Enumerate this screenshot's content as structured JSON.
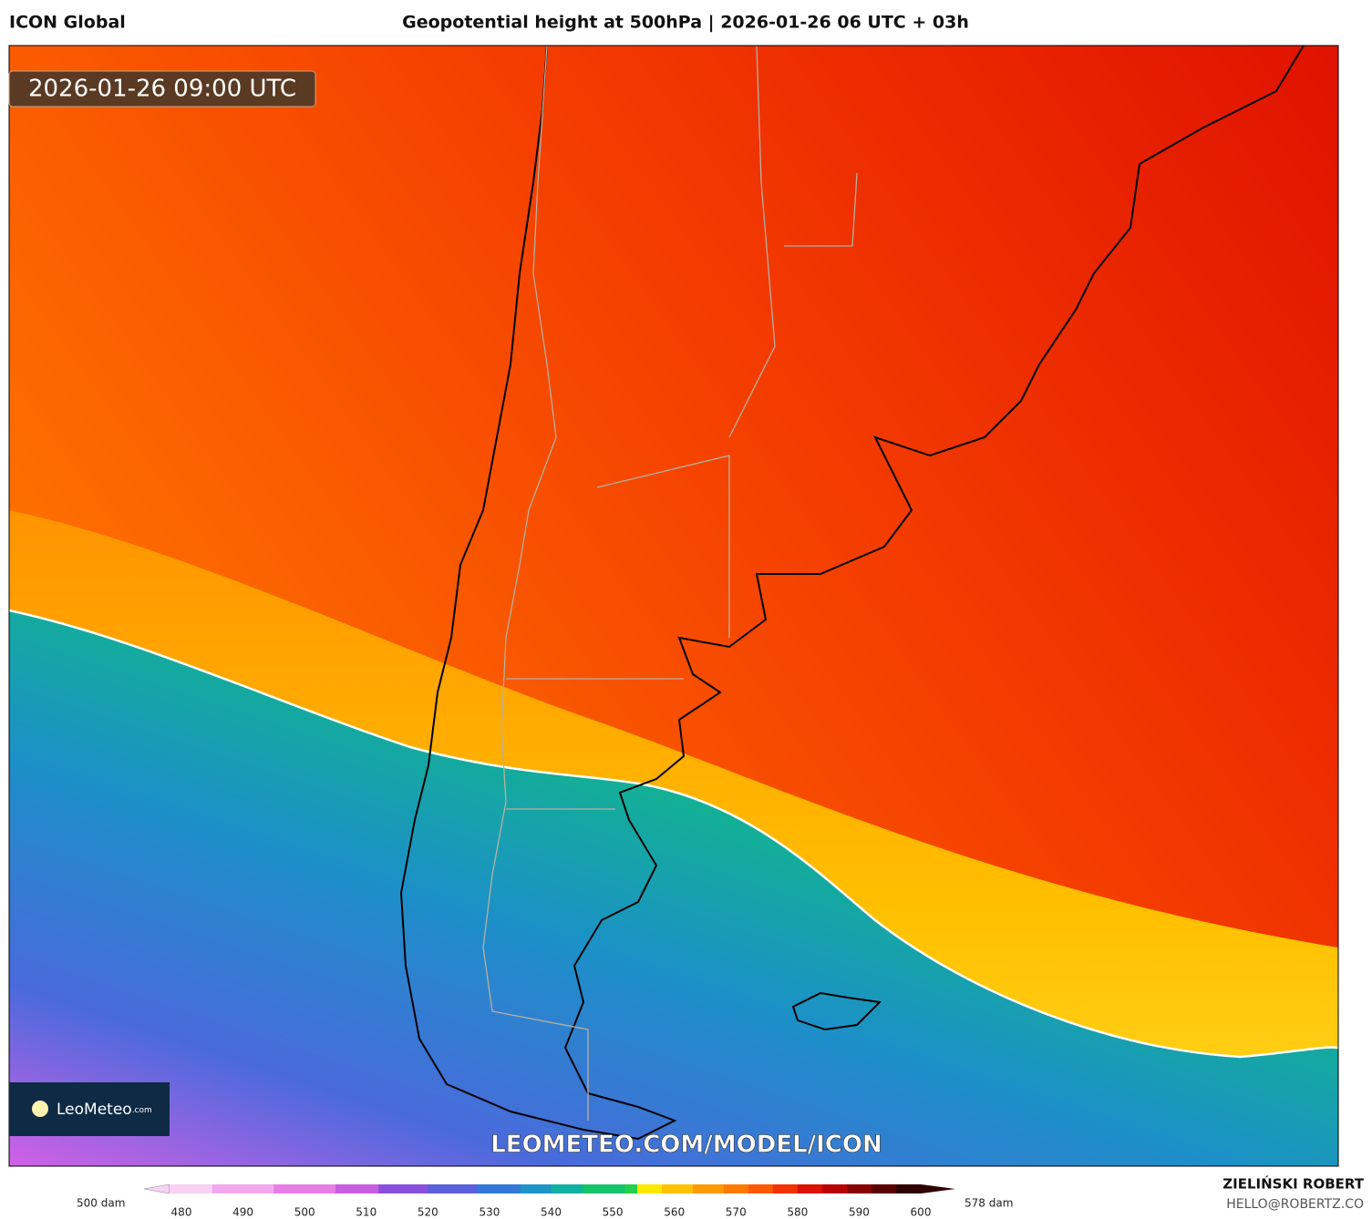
{
  "header": {
    "model": "ICON Global",
    "title": "Geopotential height at 500hPa | 2026-01-26 06 UTC + 03h"
  },
  "map": {
    "valid_time": "2026-01-26 09:00 UTC",
    "watermark": "LEOMETEO.COM/MODEL/ICON",
    "logo": {
      "name": "LeoMeteo",
      "suffix": ".com"
    }
  },
  "colorbar": {
    "min_label": "500 dam",
    "max_label": "578 dam",
    "ticks": [
      480,
      490,
      500,
      510,
      520,
      530,
      540,
      550,
      560,
      570,
      580,
      590,
      600
    ],
    "stops": [
      {
        "value": 478,
        "color": "#fbd0f5"
      },
      {
        "value": 485,
        "color": "#f3a8ee"
      },
      {
        "value": 495,
        "color": "#e77de6"
      },
      {
        "value": 505,
        "color": "#c85ee0"
      },
      {
        "value": 512,
        "color": "#8a4fdc"
      },
      {
        "value": 520,
        "color": "#5b5fdc"
      },
      {
        "value": 528,
        "color": "#3278d8"
      },
      {
        "value": 535,
        "color": "#1d95c8"
      },
      {
        "value": 540,
        "color": "#10b1a0"
      },
      {
        "value": 545,
        "color": "#14c36a"
      },
      {
        "value": 552,
        "color": "#25d04a"
      },
      {
        "value": 554,
        "color": "#ffe800"
      },
      {
        "value": 558,
        "color": "#ffc000"
      },
      {
        "value": 563,
        "color": "#ff9a00"
      },
      {
        "value": 568,
        "color": "#ff7a00"
      },
      {
        "value": 572,
        "color": "#ff5a00"
      },
      {
        "value": 576,
        "color": "#f23200"
      },
      {
        "value": 580,
        "color": "#dc1200"
      },
      {
        "value": 584,
        "color": "#b80000"
      },
      {
        "value": 588,
        "color": "#8a0000"
      },
      {
        "value": 592,
        "color": "#5a0000"
      },
      {
        "value": 596,
        "color": "#300000"
      }
    ]
  },
  "credits": {
    "author": "ZIELIŃSKI ROBERT",
    "contact": "HELLO@ROBERTZ.CO"
  }
}
